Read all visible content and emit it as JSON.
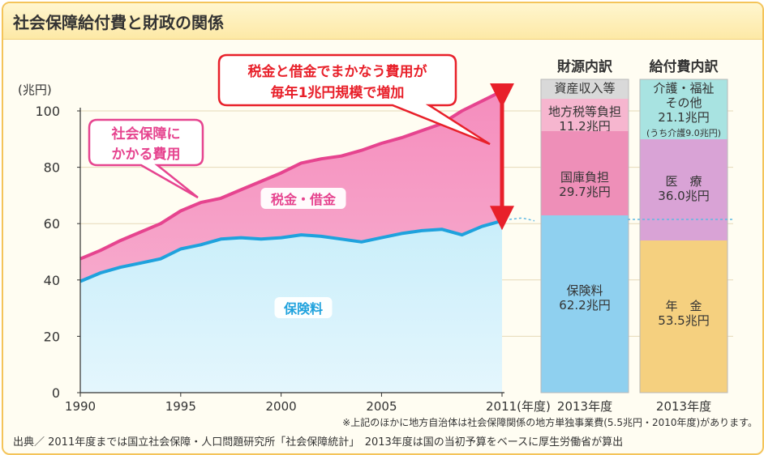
{
  "page": {
    "title": "社会保障給付費と財政の関係"
  },
  "chart_data": {
    "type": "area",
    "ylabel": "(兆円)",
    "ylim": [
      0,
      100
    ],
    "yticks": [
      0,
      20,
      40,
      60,
      80,
      100
    ],
    "xticks": [
      "1990",
      "1995",
      "2000",
      "2005",
      "2011(年度)"
    ],
    "x": [
      1990,
      1991,
      1992,
      1993,
      1994,
      1995,
      1996,
      1997,
      1998,
      1999,
      2000,
      2001,
      2002,
      2003,
      2004,
      2005,
      2006,
      2007,
      2008,
      2009,
      2010,
      2011
    ],
    "series": [
      {
        "name": "保険料",
        "values": [
          39.5,
          42.5,
          44.5,
          46,
          47.5,
          51,
          52.5,
          54.5,
          55,
          54.5,
          55,
          56,
          55.5,
          54.5,
          53.5,
          55,
          56.5,
          57.5,
          58,
          56,
          59,
          61
        ]
      },
      {
        "name": "税金・借金",
        "values": [
          47.5,
          50.5,
          54,
          57,
          60,
          64.5,
          67.5,
          69,
          72,
          75,
          78,
          81.5,
          83,
          84,
          86,
          88.5,
          90.5,
          93,
          95.5,
          100,
          103.5,
          107
        ]
      }
    ],
    "labels": {
      "insurance": "保険料",
      "tax": "税金・借金",
      "callout_social": [
        "社会保障に",
        "かかる費用"
      ],
      "callout_top": [
        "税金と借金でまかなう費用が",
        "毎年1兆円規模で増加"
      ]
    },
    "bar_headers": [
      "財源内訳",
      "給付費内訳"
    ],
    "funding_bar": {
      "year_label": "2013年度",
      "segments": [
        {
          "label": [
            "資産収入等"
          ],
          "value": null,
          "color": "#d9d9d9"
        },
        {
          "label": [
            "地方税等負担",
            "11.2兆円"
          ],
          "value": 11.2,
          "color": "#f6b6cf"
        },
        {
          "label": [
            "国庫負担",
            "29.7兆円"
          ],
          "value": 29.7,
          "color": "#ee8fb8"
        },
        {
          "label": [
            "保険料",
            "62.2兆円"
          ],
          "value": 62.2,
          "color": "#8fd0ef"
        }
      ]
    },
    "benefit_bar": {
      "year_label": "2013年度",
      "segments": [
        {
          "label": [
            "介護・福祉",
            "その他",
            "21.1兆円",
            "(うち介護9.0兆円)"
          ],
          "value": 21.1,
          "color": "#a8e3e1"
        },
        {
          "label": [
            "医　療",
            "36.0兆円"
          ],
          "value": 36.0,
          "color": "#d9a3d6"
        },
        {
          "label": [
            "年　金",
            "53.5兆円"
          ],
          "value": 53.5,
          "color": "#f5d07f"
        }
      ]
    },
    "note": "※上記のほかに地方自治体は社会保障関係の地方単独事業費(5.5兆円・2010年度)があります。",
    "source": "出典／ 2011年度までは国立社会保障・人口問題研究所「社会保障統計」　2013年度は国の当初予算をベースに厚生労働省が算出"
  }
}
